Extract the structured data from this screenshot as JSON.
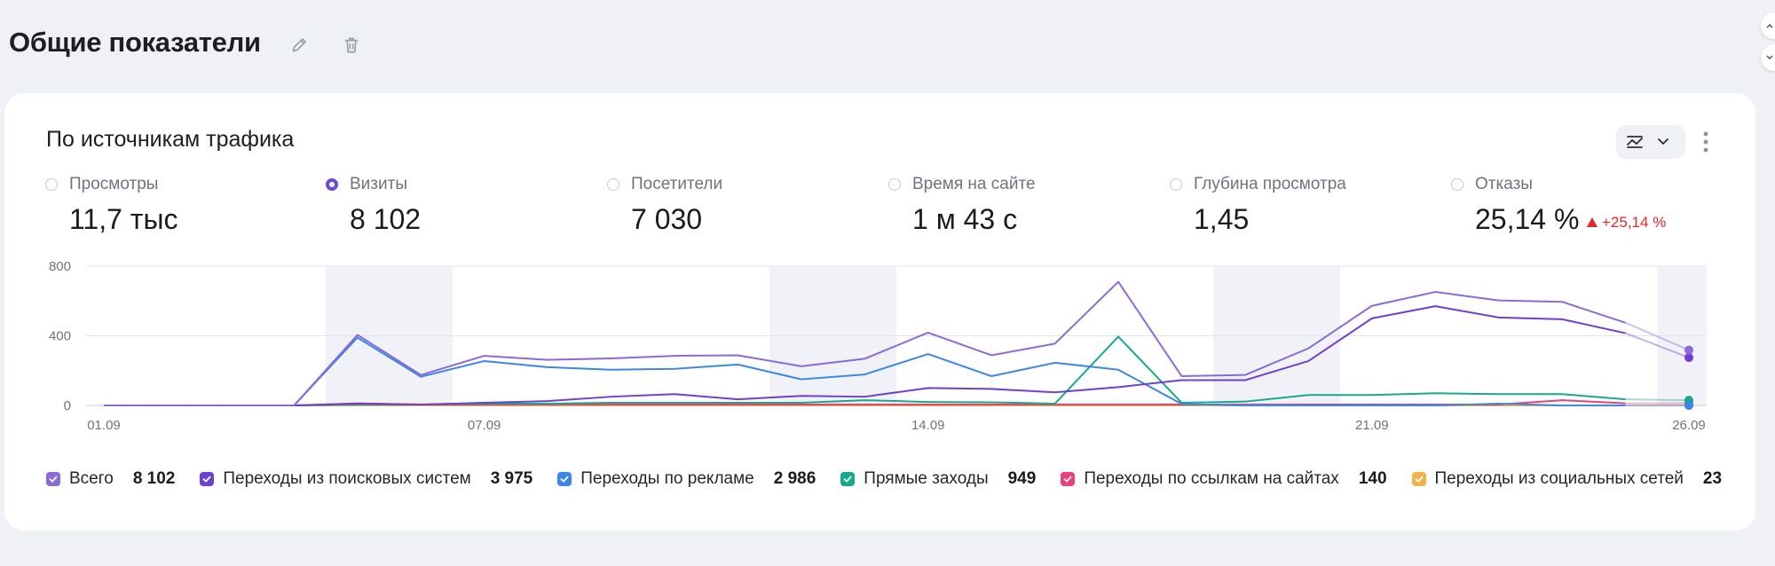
{
  "page": {
    "title": "Общие показатели"
  },
  "card": {
    "title": "По источникам трафика",
    "metrics": [
      {
        "label": "Просмотры",
        "value": "11,7 тыс",
        "selected": false
      },
      {
        "label": "Визиты",
        "value": "8 102",
        "selected": true
      },
      {
        "label": "Посетители",
        "value": "7 030",
        "selected": false
      },
      {
        "label": "Время на сайте",
        "value": "1 м 43 с",
        "selected": false
      },
      {
        "label": "Глубина просмотра",
        "value": "1,45",
        "selected": false
      },
      {
        "label": "Отказы",
        "value": "25,14 %",
        "selected": false,
        "delta": "+25,14 %",
        "delta_color": "#e02828"
      }
    ],
    "legend": [
      {
        "name": "Всего",
        "value": "8 102",
        "color": "#8a6ad8"
      },
      {
        "name": "Переходы из поисковых систем",
        "value": "3 975",
        "color": "#6f3fd2"
      },
      {
        "name": "Переходы по рекламе",
        "value": "2 986",
        "color": "#3b86e6"
      },
      {
        "name": "Прямые заходы",
        "value": "949",
        "color": "#18a88c"
      },
      {
        "name": "Переходы по ссылкам на сайтах",
        "value": "140",
        "color": "#e8417f"
      },
      {
        "name": "Переходы из социальных сетей",
        "value": "23",
        "color": "#f2b24a"
      }
    ]
  },
  "chart_data": {
    "type": "line",
    "x": [
      "01.09",
      "02.09",
      "03.09",
      "04.09",
      "05.09",
      "06.09",
      "07.09",
      "08.09",
      "09.09",
      "10.09",
      "11.09",
      "12.09",
      "13.09",
      "14.09",
      "15.09",
      "16.09",
      "17.09",
      "18.09",
      "19.09",
      "20.09",
      "21.09",
      "22.09",
      "23.09",
      "24.09",
      "25.09",
      "26.09"
    ],
    "xticks": [
      "01.09",
      "07.09",
      "14.09",
      "21.09",
      "26.09"
    ],
    "yticks": [
      0,
      400,
      800
    ],
    "ylim": [
      0,
      800
    ],
    "weekend_bands": [
      [
        "05.09",
        "06.09"
      ],
      [
        "12.09",
        "13.09"
      ],
      [
        "19.09",
        "20.09"
      ],
      [
        "26.09",
        "26.09"
      ]
    ],
    "series": [
      {
        "name": "Всего",
        "color": "#8a6ad8",
        "values": [
          0,
          0,
          0,
          0,
          405,
          175,
          285,
          262,
          270,
          285,
          288,
          225,
          268,
          418,
          288,
          355,
          710,
          168,
          175,
          328,
          572,
          652,
          603,
          595,
          475,
          318
        ]
      },
      {
        "name": "Переходы из поисковых систем",
        "color": "#6f3fd2",
        "values": [
          0,
          0,
          0,
          0,
          10,
          5,
          15,
          25,
          50,
          65,
          35,
          55,
          50,
          100,
          95,
          75,
          105,
          145,
          145,
          255,
          500,
          570,
          505,
          495,
          415,
          275
        ]
      },
      {
        "name": "Переходы по рекламе",
        "color": "#3b86e6",
        "values": [
          0,
          0,
          0,
          0,
          390,
          165,
          255,
          220,
          205,
          210,
          235,
          150,
          178,
          295,
          168,
          245,
          205,
          8,
          0,
          0,
          0,
          0,
          10,
          0,
          0,
          0
        ]
      },
      {
        "name": "Прямые заходы",
        "color": "#18a88c",
        "values": [
          0,
          0,
          0,
          0,
          5,
          5,
          10,
          10,
          15,
          15,
          15,
          15,
          30,
          20,
          18,
          10,
          395,
          15,
          22,
          60,
          60,
          70,
          65,
          65,
          35,
          30
        ]
      },
      {
        "name": "Переходы по ссылкам на сайтах",
        "color": "#e8417f",
        "values": [
          0,
          0,
          0,
          0,
          12,
          5,
          5,
          5,
          5,
          5,
          5,
          5,
          5,
          5,
          5,
          5,
          5,
          5,
          5,
          5,
          5,
          5,
          5,
          30,
          12,
          12
        ]
      },
      {
        "name": "Переходы из социальных сетей",
        "color": "#f2b24a",
        "values": [
          0,
          0,
          0,
          0,
          0,
          0,
          0,
          0,
          0,
          0,
          0,
          0,
          0,
          0,
          0,
          0,
          0,
          0,
          0,
          0,
          0,
          0,
          0,
          0,
          0,
          0
        ]
      }
    ]
  }
}
